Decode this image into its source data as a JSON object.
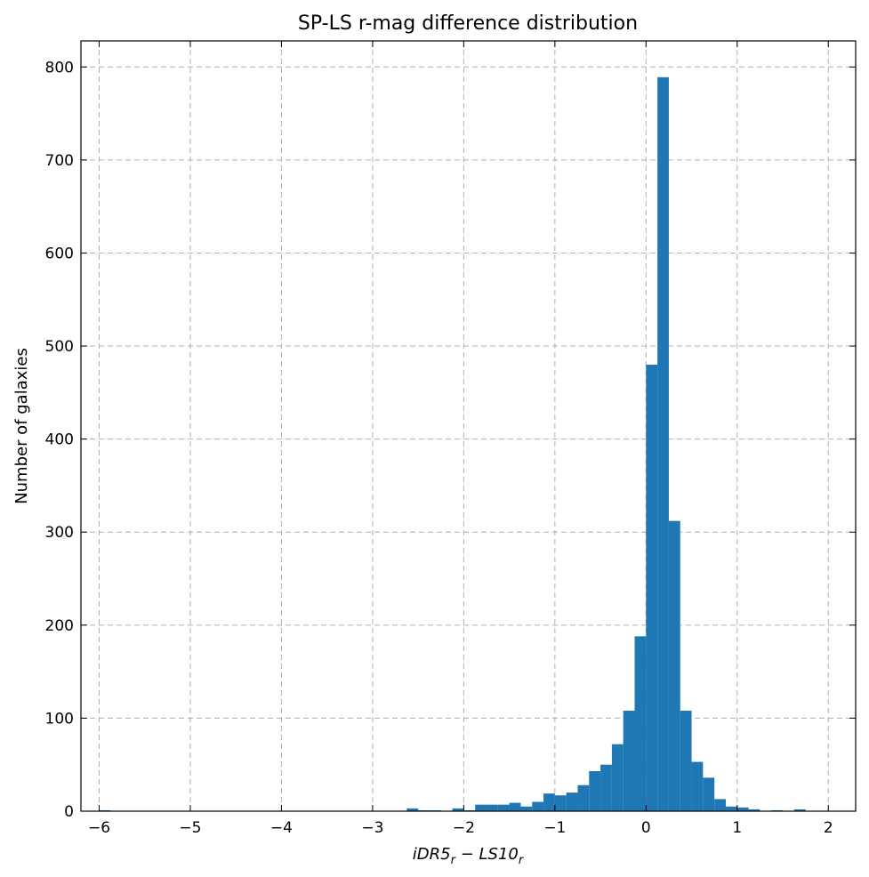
{
  "chart_data": {
    "type": "bar",
    "title": "SP-LS r-mag difference distribution",
    "xlabel_parts": {
      "a": "iDR5",
      "a_sub": "r",
      "op": " − ",
      "b": "LS10",
      "b_sub": "r"
    },
    "ylabel": "Number of galaxies",
    "xlim": [
      -6.2,
      2.3
    ],
    "ylim": [
      0,
      828
    ],
    "xticks": [
      -6,
      -5,
      -4,
      -3,
      -2,
      -1,
      0,
      1,
      2
    ],
    "xtick_labels": [
      "−6",
      "−5",
      "−4",
      "−3",
      "−2",
      "−1",
      "0",
      "1",
      "2"
    ],
    "yticks": [
      0,
      100,
      200,
      300,
      400,
      500,
      600,
      700,
      800
    ],
    "ytick_labels": [
      "0",
      "100",
      "200",
      "300",
      "400",
      "500",
      "600",
      "700",
      "800"
    ],
    "grid": true,
    "color": "#1f77b4",
    "bin_width": 0.125,
    "bins": [
      {
        "x0": -6.0,
        "count": 1
      },
      {
        "x0": -2.625,
        "count": 3
      },
      {
        "x0": -2.5,
        "count": 1
      },
      {
        "x0": -2.375,
        "count": 1
      },
      {
        "x0": -2.125,
        "count": 3
      },
      {
        "x0": -2.0,
        "count": 1
      },
      {
        "x0": -1.875,
        "count": 7
      },
      {
        "x0": -1.75,
        "count": 7
      },
      {
        "x0": -1.625,
        "count": 7
      },
      {
        "x0": -1.5,
        "count": 9
      },
      {
        "x0": -1.375,
        "count": 5
      },
      {
        "x0": -1.25,
        "count": 10
      },
      {
        "x0": -1.125,
        "count": 19
      },
      {
        "x0": -1.0,
        "count": 17
      },
      {
        "x0": -0.875,
        "count": 20
      },
      {
        "x0": -0.75,
        "count": 28
      },
      {
        "x0": -0.625,
        "count": 43
      },
      {
        "x0": -0.5,
        "count": 50
      },
      {
        "x0": -0.375,
        "count": 72
      },
      {
        "x0": -0.25,
        "count": 108
      },
      {
        "x0": -0.125,
        "count": 188
      },
      {
        "x0": 0.0,
        "count": 480
      },
      {
        "x0": 0.125,
        "count": 789
      },
      {
        "x0": 0.25,
        "count": 312
      },
      {
        "x0": 0.375,
        "count": 108
      },
      {
        "x0": 0.5,
        "count": 53
      },
      {
        "x0": 0.625,
        "count": 36
      },
      {
        "x0": 0.75,
        "count": 13
      },
      {
        "x0": 0.875,
        "count": 5
      },
      {
        "x0": 1.0,
        "count": 4
      },
      {
        "x0": 1.125,
        "count": 2
      },
      {
        "x0": 1.375,
        "count": 1
      },
      {
        "x0": 1.625,
        "count": 2
      }
    ]
  }
}
